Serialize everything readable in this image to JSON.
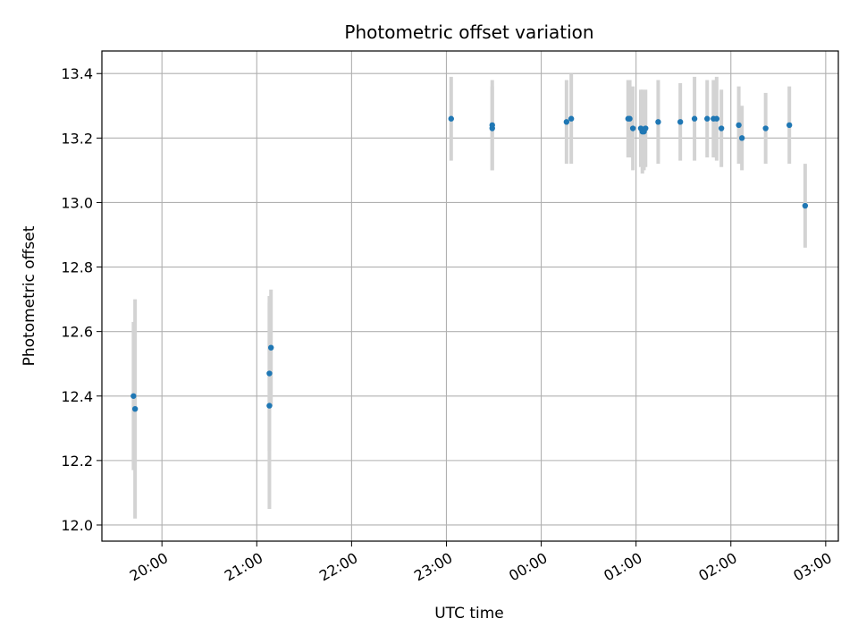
{
  "chart_data": {
    "type": "scatter",
    "title": "Photometric offset variation",
    "xlabel": "UTC time",
    "ylabel": "Photometric offset",
    "x_ticks": [
      "20:00",
      "21:00",
      "22:00",
      "23:00",
      "00:00",
      "01:00",
      "02:00",
      "03:00"
    ],
    "y_ticks": [
      "12.0",
      "12.2",
      "12.4",
      "12.6",
      "12.8",
      "13.0",
      "13.2",
      "13.4"
    ],
    "xlim": [
      "19:22",
      "03:08"
    ],
    "ylim": [
      11.95,
      13.47
    ],
    "grid": true,
    "colors": {
      "point": "#1f77b4",
      "errorbar": "#d3d3d3",
      "grid": "#b0b0b0"
    },
    "points": [
      {
        "x": "19:42",
        "y": 12.4,
        "yerr": 0.23
      },
      {
        "x": "19:43",
        "y": 12.36,
        "yerr": 0.34
      },
      {
        "x": "21:08",
        "y": 12.37,
        "yerr": 0.32
      },
      {
        "x": "21:08",
        "y": 12.47,
        "yerr": 0.24
      },
      {
        "x": "21:09",
        "y": 12.55,
        "yerr": 0.18
      },
      {
        "x": "23:03",
        "y": 13.26,
        "yerr": 0.13
      },
      {
        "x": "23:29",
        "y": 13.23,
        "yerr": 0.13
      },
      {
        "x": "23:29",
        "y": 13.24,
        "yerr": 0.14
      },
      {
        "x": "00:16",
        "y": 13.25,
        "yerr": 0.13
      },
      {
        "x": "00:19",
        "y": 13.26,
        "yerr": 0.14
      },
      {
        "x": "00:55",
        "y": 13.26,
        "yerr": 0.12
      },
      {
        "x": "00:56",
        "y": 13.26,
        "yerr": 0.12
      },
      {
        "x": "00:58",
        "y": 13.23,
        "yerr": 0.13
      },
      {
        "x": "01:03",
        "y": 13.23,
        "yerr": 0.12
      },
      {
        "x": "01:04",
        "y": 13.22,
        "yerr": 0.13
      },
      {
        "x": "01:05",
        "y": 13.22,
        "yerr": 0.12
      },
      {
        "x": "01:06",
        "y": 13.23,
        "yerr": 0.12
      },
      {
        "x": "01:14",
        "y": 13.25,
        "yerr": 0.13
      },
      {
        "x": "01:28",
        "y": 13.25,
        "yerr": 0.12
      },
      {
        "x": "01:37",
        "y": 13.26,
        "yerr": 0.13
      },
      {
        "x": "01:45",
        "y": 13.26,
        "yerr": 0.12
      },
      {
        "x": "01:49",
        "y": 13.26,
        "yerr": 0.12
      },
      {
        "x": "01:51",
        "y": 13.26,
        "yerr": 0.13
      },
      {
        "x": "01:54",
        "y": 13.23,
        "yerr": 0.12
      },
      {
        "x": "02:05",
        "y": 13.24,
        "yerr": 0.12
      },
      {
        "x": "02:07",
        "y": 13.2,
        "yerr": 0.1
      },
      {
        "x": "02:22",
        "y": 13.23,
        "yerr": 0.11
      },
      {
        "x": "02:37",
        "y": 13.24,
        "yerr": 0.12
      },
      {
        "x": "02:47",
        "y": 12.99,
        "yerr": 0.13
      }
    ]
  }
}
